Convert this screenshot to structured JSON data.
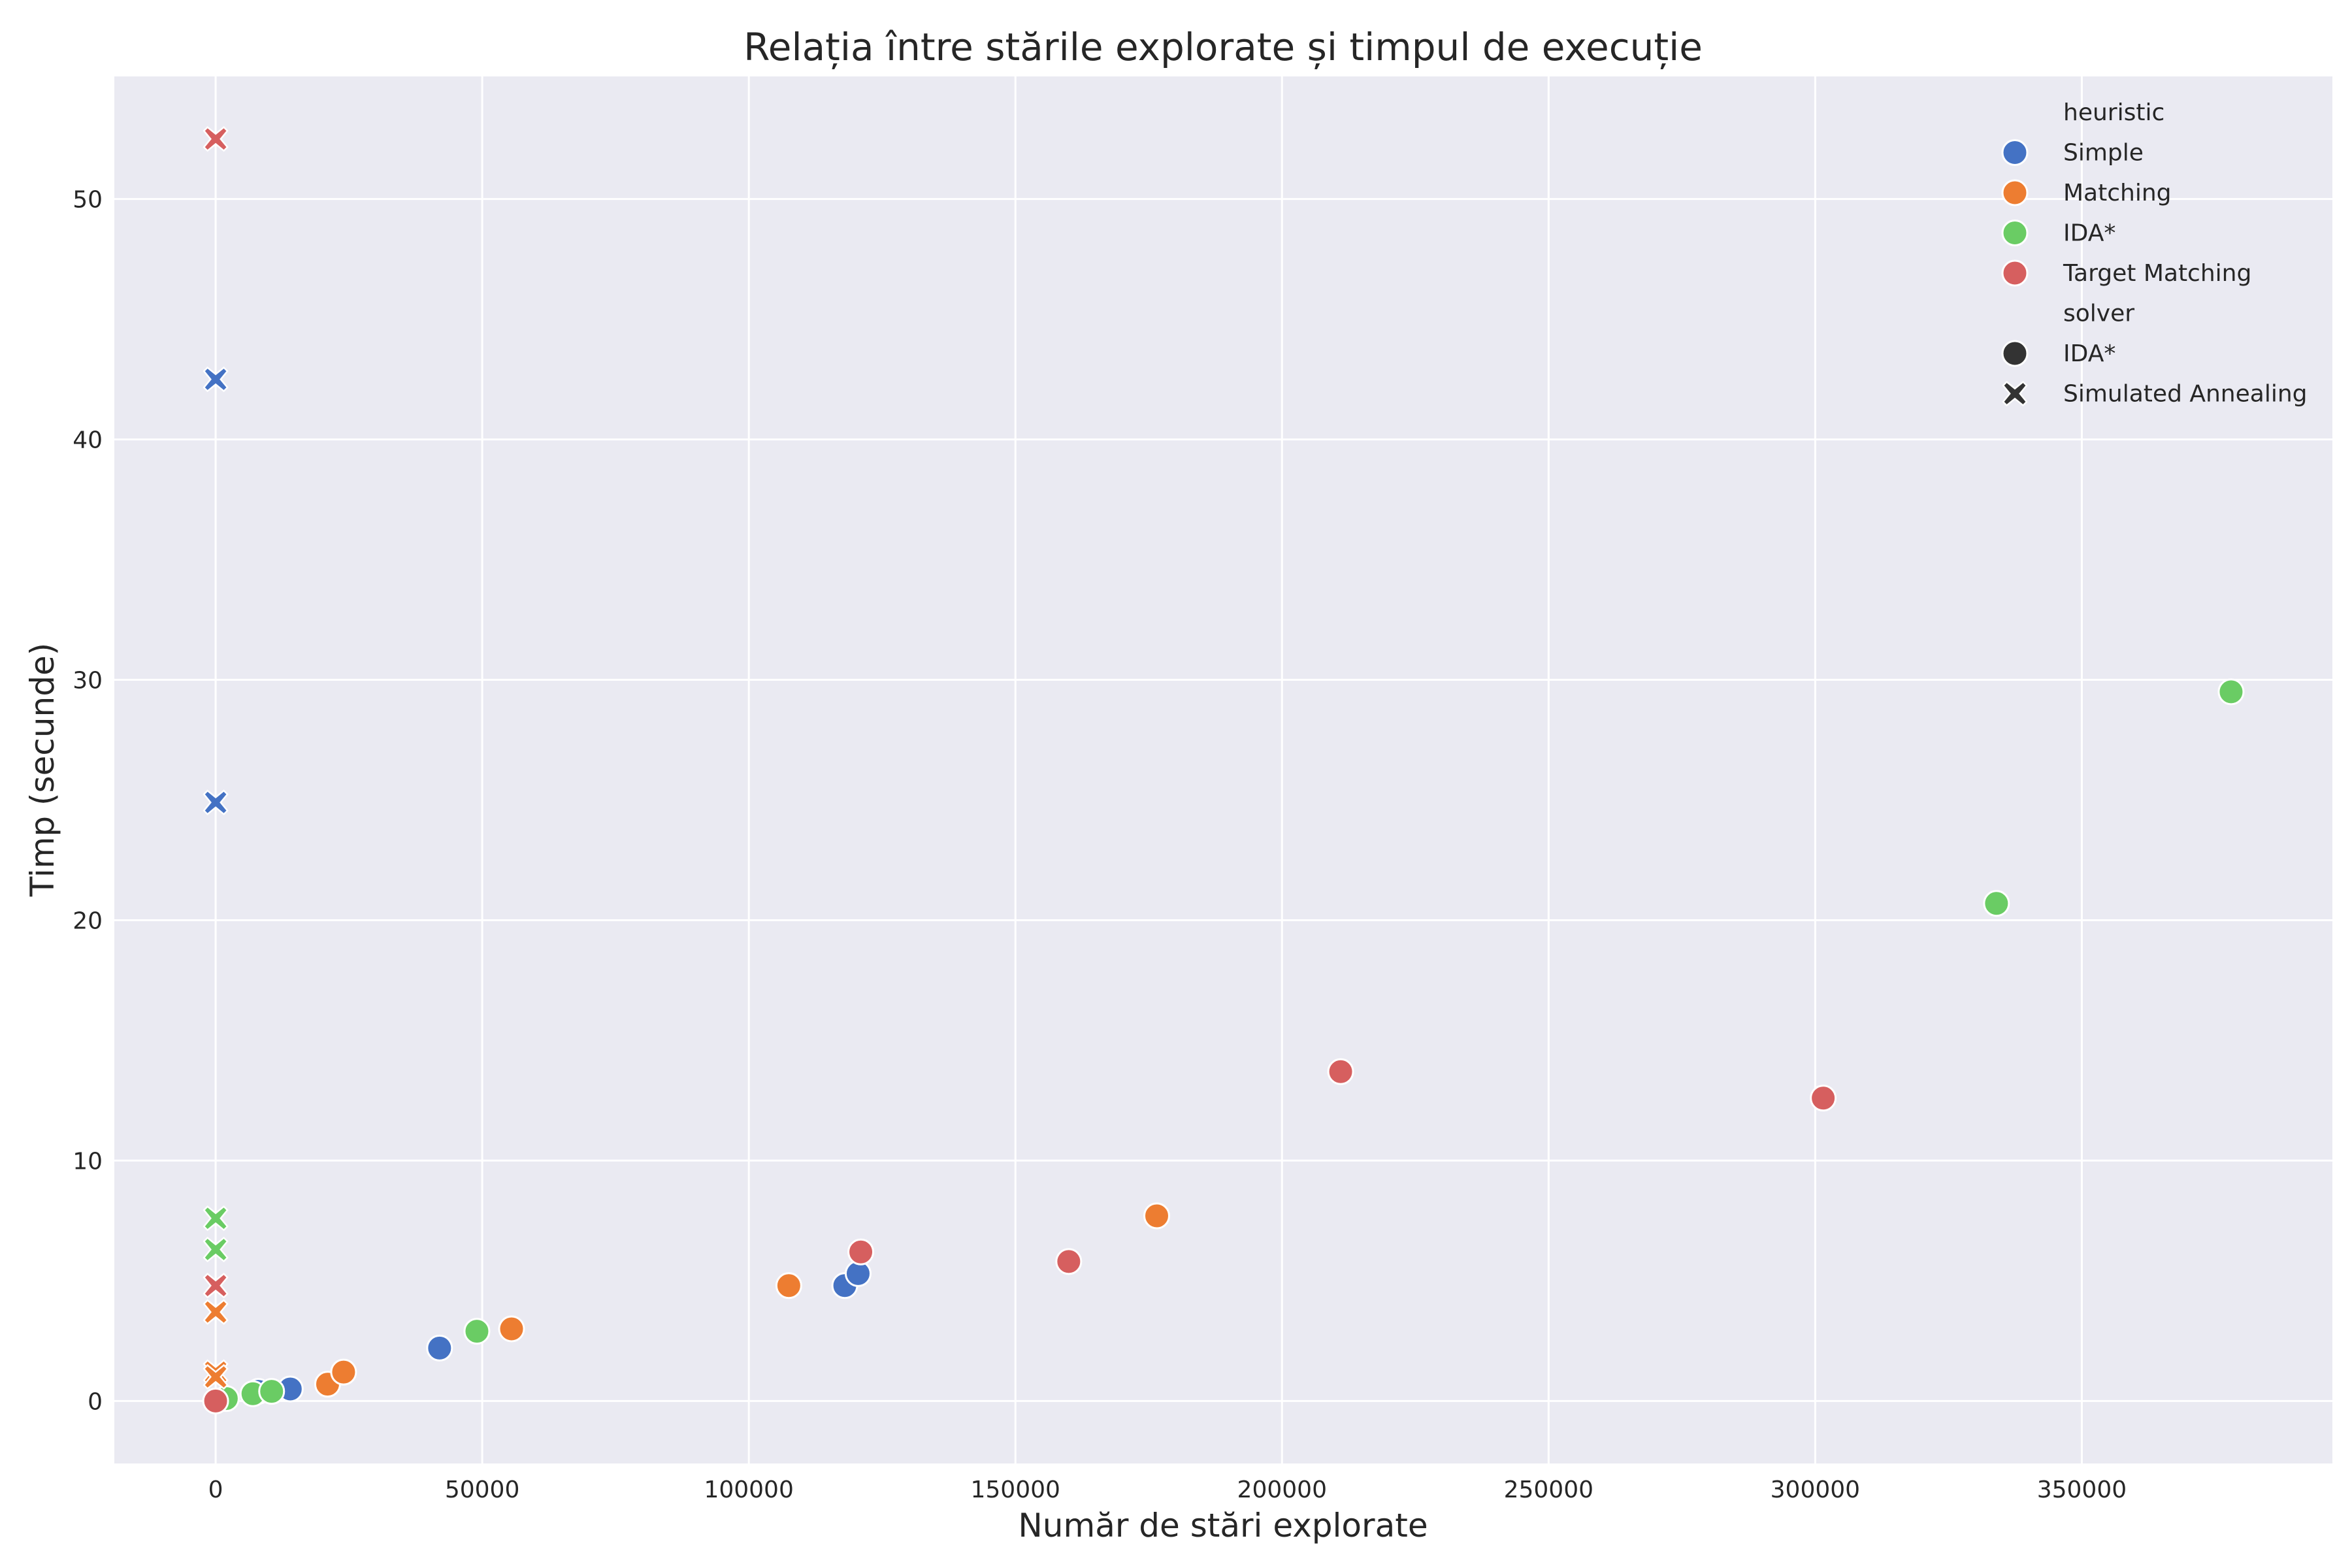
{
  "chart_data": {
    "type": "scatter",
    "title": "Relația între stările explorate și timpul de execuție",
    "xlabel": "Număr de stări explorate",
    "ylabel": "Timp (secunde)",
    "xlim": [
      -19000,
      397000
    ],
    "ylim": [
      -2.6,
      55.1
    ],
    "xticks": [
      0,
      50000,
      100000,
      150000,
      200000,
      250000,
      300000,
      350000
    ],
    "yticks": [
      0,
      10,
      20,
      30,
      40,
      50
    ],
    "grid": true,
    "legend_position": "top-right",
    "legend": {
      "hue_title": "heuristic",
      "style_title": "solver",
      "hue_entries": [
        {
          "label": "Simple",
          "color": "#4472c4"
        },
        {
          "label": "Matching",
          "color": "#ed7d31"
        },
        {
          "label": "IDA*",
          "color": "#6acc64"
        },
        {
          "label": "Target Matching",
          "color": "#d65f5f"
        }
      ],
      "style_entries": [
        {
          "label": "IDA*",
          "marker": "circle"
        },
        {
          "label": "Simulated Annealing",
          "marker": "x"
        }
      ]
    },
    "series": [
      {
        "heuristic": "Simple",
        "solver": "IDA*",
        "color": "#4472c4",
        "marker": "circle",
        "points": [
          [
            8000,
            0.4
          ],
          [
            14000,
            0.5
          ],
          [
            42000,
            2.2
          ],
          [
            118000,
            4.8
          ],
          [
            120500,
            5.3
          ]
        ]
      },
      {
        "heuristic": "Matching",
        "solver": "IDA*",
        "color": "#ed7d31",
        "marker": "circle",
        "points": [
          [
            21000,
            0.7
          ],
          [
            24000,
            1.2
          ],
          [
            55500,
            3.0
          ],
          [
            107500,
            4.8
          ],
          [
            176500,
            7.7
          ]
        ]
      },
      {
        "heuristic": "IDA*",
        "solver": "IDA*",
        "color": "#6acc64",
        "marker": "circle",
        "points": [
          [
            2000,
            0.1
          ],
          [
            7000,
            0.3
          ],
          [
            10500,
            0.4
          ],
          [
            49000,
            2.9
          ],
          [
            334000,
            20.7
          ],
          [
            378000,
            29.5
          ]
        ]
      },
      {
        "heuristic": "Target Matching",
        "solver": "IDA*",
        "color": "#d65f5f",
        "marker": "circle",
        "points": [
          [
            0,
            0.0
          ],
          [
            121000,
            6.2
          ],
          [
            160000,
            5.8
          ],
          [
            211000,
            13.7
          ],
          [
            301500,
            12.6
          ]
        ]
      },
      {
        "heuristic": "Simple",
        "solver": "Simulated Annealing",
        "color": "#4472c4",
        "marker": "x",
        "points": [
          [
            0,
            42.5
          ],
          [
            0,
            24.9
          ]
        ]
      },
      {
        "heuristic": "Matching",
        "solver": "Simulated Annealing",
        "color": "#ed7d31",
        "marker": "x",
        "points": [
          [
            0,
            3.7
          ],
          [
            0,
            1.2
          ],
          [
            0,
            1.0
          ]
        ]
      },
      {
        "heuristic": "IDA*",
        "solver": "Simulated Annealing",
        "color": "#6acc64",
        "marker": "x",
        "points": [
          [
            0,
            7.6
          ],
          [
            0,
            6.3
          ]
        ]
      },
      {
        "heuristic": "Target Matching",
        "solver": "Simulated Annealing",
        "color": "#d65f5f",
        "marker": "x",
        "points": [
          [
            0,
            52.5
          ],
          [
            0,
            4.8
          ]
        ]
      }
    ]
  },
  "colors": {
    "plot_background": "#eaeaf2",
    "grid": "#ffffff",
    "marker_edge": "#ffffff"
  }
}
